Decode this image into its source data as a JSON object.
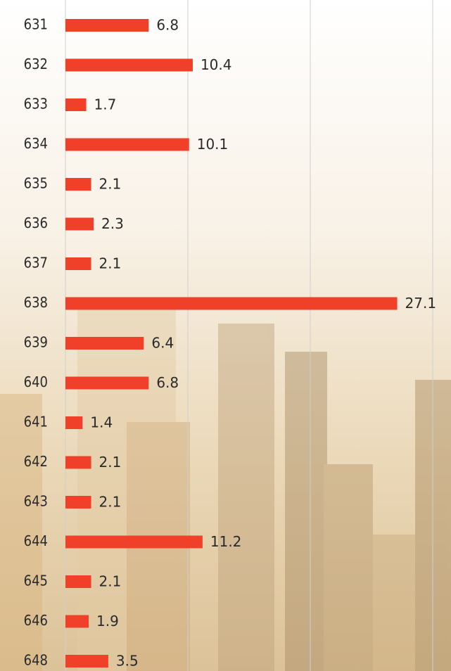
{
  "chart_data": {
    "type": "hbar",
    "categories": [
      "631",
      "632",
      "633",
      "634",
      "635",
      "636",
      "637",
      "638",
      "639",
      "640",
      "641",
      "642",
      "643",
      "644",
      "645",
      "646",
      "648"
    ],
    "values": [
      6.8,
      10.4,
      1.7,
      10.1,
      2.1,
      2.3,
      2.1,
      27.1,
      6.4,
      6.8,
      1.4,
      2.1,
      2.1,
      11.2,
      2.1,
      1.9,
      3.5
    ],
    "color": "#f0402a",
    "xlim": [
      0,
      30
    ],
    "xticks": [
      0,
      10,
      20,
      30
    ],
    "grid": true
  }
}
